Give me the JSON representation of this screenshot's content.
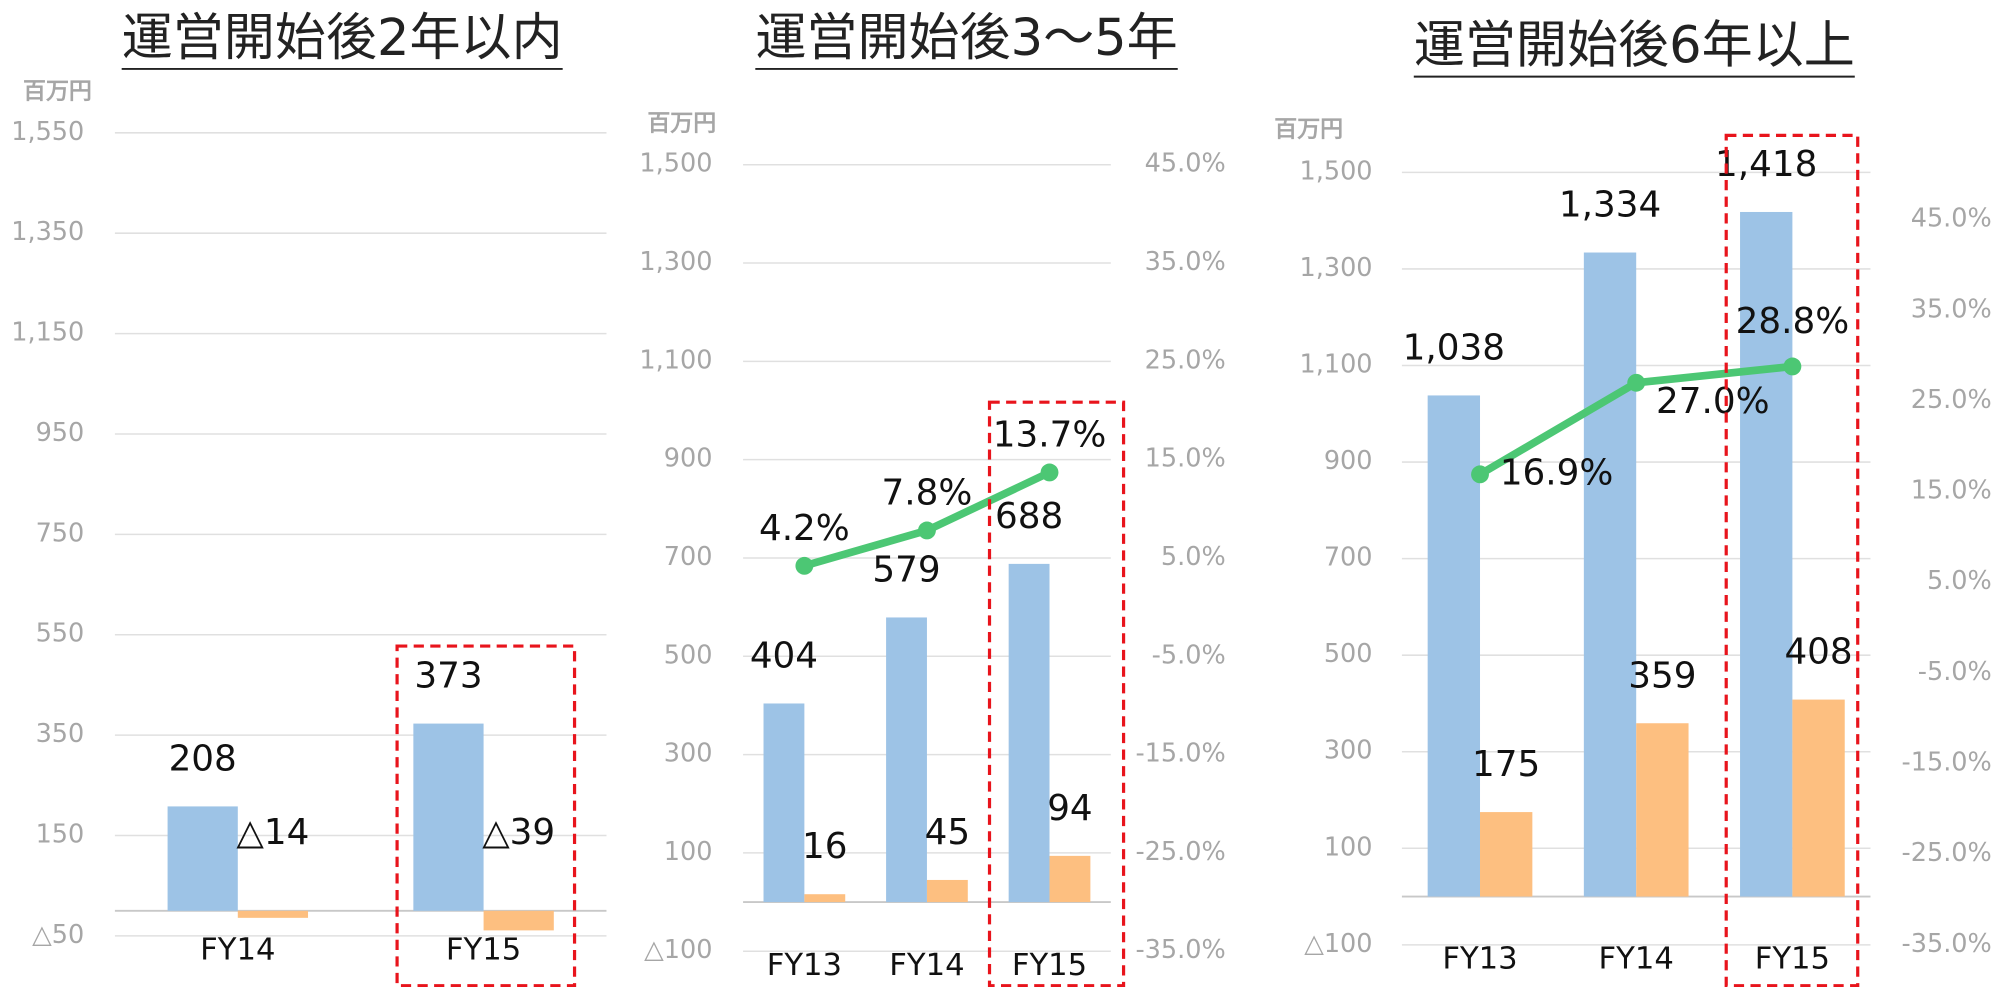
{
  "chart_data": [
    {
      "type": "bar",
      "title": "運営開始後2年以内",
      "y_unit": "百万円",
      "categories": [
        "FY14",
        "FY15"
      ],
      "ylim": [
        -50,
        1550
      ],
      "yticks": [
        {
          "value": -50,
          "label": "△50"
        },
        150,
        350,
        550,
        750,
        950,
        {
          "value": 1150,
          "label": "1,150"
        },
        {
          "value": 1350,
          "label": "1,350"
        },
        {
          "value": 1550,
          "label": "1,550"
        }
      ],
      "grid": true,
      "series": [
        {
          "color": "#9dc3e6",
          "values": [
            208,
            373
          ]
        },
        {
          "color": "#fdbf80",
          "values": [
            -14,
            -39
          ],
          "value_labels": [
            "△14",
            "△39"
          ]
        }
      ]
    },
    {
      "type": "bar",
      "title": "運営開始後3～5年",
      "y_unit": "百万円",
      "categories": [
        "FY13",
        "FY14",
        "FY15"
      ],
      "ylim": [
        -100,
        1500
      ],
      "yticks": [
        {
          "value": -100,
          "label": "△100"
        },
        100,
        300,
        500,
        700,
        900,
        {
          "value": 1100,
          "label": "1,100"
        },
        {
          "value": 1300,
          "label": "1,300"
        },
        {
          "value": 1500,
          "label": "1,500"
        }
      ],
      "y2lim": [
        -35,
        45
      ],
      "y2ticks": [
        {
          "value": -35,
          "label": "-35.0%"
        },
        {
          "value": -25,
          "label": "-25.0%"
        },
        {
          "value": -15,
          "label": "-15.0%"
        },
        {
          "value": -5,
          "label": "-5.0%"
        },
        {
          "value": 5,
          "label": "5.0%"
        },
        {
          "value": 15,
          "label": "15.0%"
        },
        {
          "value": 25,
          "label": "25.0%"
        },
        {
          "value": 35,
          "label": "35.0%"
        },
        {
          "value": 45,
          "label": "45.0%"
        }
      ],
      "grid": true,
      "series": [
        {
          "color": "#9dc3e6",
          "values": [
            404,
            579,
            688
          ]
        },
        {
          "color": "#fdbf80",
          "values": [
            16,
            45,
            94
          ]
        },
        {
          "type": "line",
          "axis": "y2",
          "color": "#4cc774",
          "values": [
            4.2,
            7.8,
            13.7
          ],
          "value_labels": [
            "4.2%",
            "7.8%",
            "13.7%"
          ]
        }
      ]
    },
    {
      "type": "bar",
      "title": "運営開始後6年以上",
      "y_unit": "百万円",
      "categories": [
        "FY13",
        "FY14",
        "FY15"
      ],
      "ylim": [
        -100,
        1500
      ],
      "yticks": [
        {
          "value": -100,
          "label": "△100"
        },
        100,
        300,
        500,
        700,
        900,
        {
          "value": 1100,
          "label": "1,100"
        },
        {
          "value": 1300,
          "label": "1,300"
        },
        {
          "value": 1500,
          "label": "1,500"
        }
      ],
      "y2lim": [
        -35,
        45
      ],
      "y2ticks": [
        {
          "value": -35,
          "label": "-35.0%"
        },
        {
          "value": -25,
          "label": "-25.0%"
        },
        {
          "value": -15,
          "label": "-15.0%"
        },
        {
          "value": -5,
          "label": "-5.0%"
        },
        {
          "value": 5,
          "label": "5.0%"
        },
        {
          "value": 15,
          "label": "15.0%"
        },
        {
          "value": 25,
          "label": "25.0%"
        },
        {
          "value": 35,
          "label": "35.0%"
        },
        {
          "value": 45,
          "label": "45.0%"
        }
      ],
      "grid": true,
      "series": [
        {
          "color": "#9dc3e6",
          "values": [
            1038,
            1334,
            1418
          ],
          "value_labels": [
            "1,038",
            "1,334",
            "1,418"
          ]
        },
        {
          "color": "#fdbf80",
          "values": [
            175,
            359,
            408
          ]
        },
        {
          "type": "line",
          "axis": "y2",
          "color": "#4cc774",
          "values": [
            16.9,
            27.0,
            28.8
          ],
          "value_labels": [
            "16.9%",
            "27.0%",
            "28.8%"
          ]
        }
      ]
    }
  ]
}
